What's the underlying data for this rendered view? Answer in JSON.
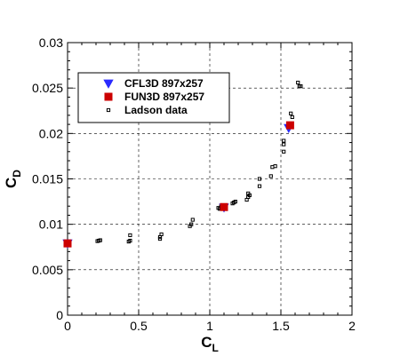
{
  "chart_data": {
    "type": "scatter",
    "title": "",
    "xlabel": {
      "main": "C",
      "sub": "L"
    },
    "ylabel": {
      "main": "C",
      "sub": "D"
    },
    "xlim": [
      0,
      2
    ],
    "ylim": [
      0,
      0.03
    ],
    "xticks": [
      0,
      0.5,
      1,
      1.5,
      2
    ],
    "xtick_labels": [
      "0",
      "0.5",
      "1",
      "1.5",
      "2"
    ],
    "yticks": [
      0,
      0.005,
      0.01,
      0.015,
      0.02,
      0.025,
      0.03
    ],
    "ytick_labels": [
      "0",
      "0.005",
      "0.01",
      "0.015",
      "0.02",
      "0.025",
      "0.03"
    ],
    "grid": true,
    "legend_position": "upper-left",
    "series": [
      {
        "name": "CFL3D 897x257",
        "marker": "triangle-down",
        "color": "#2a2aff",
        "points": [
          [
            0.0,
            0.0079
          ],
          [
            1.1,
            0.01185
          ],
          [
            1.555,
            0.0206
          ]
        ]
      },
      {
        "name": "FUN3D 897x257",
        "marker": "square-filled",
        "color": "#cc0000",
        "points": [
          [
            0.0,
            0.0079
          ],
          [
            1.1,
            0.0119
          ],
          [
            1.565,
            0.0209
          ]
        ]
      },
      {
        "name": "Ladson data",
        "marker": "square-open",
        "color": "#000000",
        "points": [
          [
            0.21,
            0.00815
          ],
          [
            0.22,
            0.0082
          ],
          [
            0.23,
            0.00825
          ],
          [
            0.43,
            0.0081
          ],
          [
            0.44,
            0.0082
          ],
          [
            0.44,
            0.0088
          ],
          [
            0.65,
            0.0084
          ],
          [
            0.65,
            0.0086
          ],
          [
            0.66,
            0.0089
          ],
          [
            0.86,
            0.0098
          ],
          [
            0.87,
            0.01
          ],
          [
            0.88,
            0.0105
          ],
          [
            1.06,
            0.0118
          ],
          [
            1.07,
            0.0117
          ],
          [
            1.08,
            0.0119
          ],
          [
            1.08,
            0.012
          ],
          [
            1.09,
            0.0121
          ],
          [
            1.16,
            0.0123
          ],
          [
            1.17,
            0.0124
          ],
          [
            1.18,
            0.0125
          ],
          [
            1.26,
            0.0127
          ],
          [
            1.27,
            0.013
          ],
          [
            1.27,
            0.0134
          ],
          [
            1.28,
            0.0132
          ],
          [
            1.35,
            0.015
          ],
          [
            1.35,
            0.0142
          ],
          [
            1.43,
            0.0153
          ],
          [
            1.44,
            0.0163
          ],
          [
            1.46,
            0.0164
          ],
          [
            1.52,
            0.018
          ],
          [
            1.52,
            0.0188
          ],
          [
            1.52,
            0.0192
          ],
          [
            1.57,
            0.0222
          ],
          [
            1.58,
            0.0218
          ],
          [
            1.62,
            0.0256
          ],
          [
            1.63,
            0.0252
          ],
          [
            1.64,
            0.0252
          ]
        ]
      }
    ]
  }
}
